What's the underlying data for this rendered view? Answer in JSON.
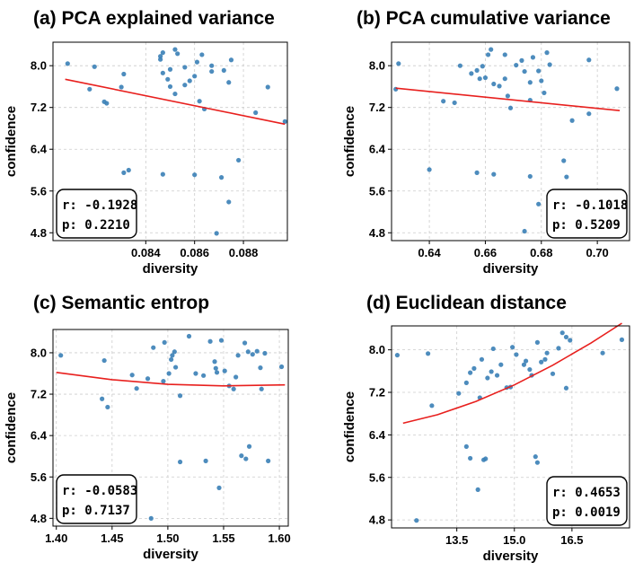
{
  "chart_data": [
    {
      "type": "scatter",
      "title": "(a) PCA explained variance",
      "xlabel": "diversity",
      "ylabel": "confidence",
      "xlim": [
        0.0802,
        0.0898
      ],
      "ylim": [
        4.65,
        8.45
      ],
      "xticks": [
        0.084,
        0.086,
        0.088
      ],
      "xtick_labels": [
        "0.084",
        "0.086",
        "0.088"
      ],
      "yticks": [
        4.8,
        5.6,
        6.4,
        7.2,
        8.0
      ],
      "ytick_labels": [
        "4.8",
        "5.6",
        "6.4",
        "7.2",
        "8.0"
      ],
      "stats": {
        "r": "r: -0.1928",
        "p": "p: 0.2210"
      },
      "stats_box": "bottom-left",
      "trend": {
        "kind": "linear",
        "points": [
          [
            0.0807,
            7.74
          ],
          [
            0.0897,
            6.88
          ]
        ]
      },
      "points": [
        [
          0.0808,
          8.04
        ],
        [
          0.0817,
          7.55
        ],
        [
          0.0819,
          7.98
        ],
        [
          0.0824,
          7.28
        ],
        [
          0.0823,
          7.31
        ],
        [
          0.0831,
          7.84
        ],
        [
          0.083,
          7.59
        ],
        [
          0.0831,
          5.95
        ],
        [
          0.0833,
          6.0
        ],
        [
          0.0846,
          8.12
        ],
        [
          0.0846,
          8.18
        ],
        [
          0.0847,
          8.25
        ],
        [
          0.0852,
          8.31
        ],
        [
          0.085,
          7.93
        ],
        [
          0.0847,
          7.86
        ],
        [
          0.0849,
          7.74
        ],
        [
          0.085,
          7.6
        ],
        [
          0.0852,
          7.46
        ],
        [
          0.0856,
          7.63
        ],
        [
          0.0856,
          7.97
        ],
        [
          0.0853,
          8.23
        ],
        [
          0.086,
          7.8
        ],
        [
          0.0858,
          7.71
        ],
        [
          0.0861,
          8.07
        ],
        [
          0.0863,
          8.21
        ],
        [
          0.0864,
          7.17
        ],
        [
          0.0862,
          7.32
        ],
        [
          0.0867,
          7.89
        ],
        [
          0.0867,
          8.0
        ],
        [
          0.0872,
          7.91
        ],
        [
          0.0874,
          7.68
        ],
        [
          0.0875,
          8.11
        ],
        [
          0.0847,
          5.92
        ],
        [
          0.086,
          5.91
        ],
        [
          0.0871,
          5.86
        ],
        [
          0.0874,
          5.39
        ],
        [
          0.0869,
          4.79
        ],
        [
          0.0878,
          6.19
        ],
        [
          0.0885,
          7.1
        ],
        [
          0.089,
          7.59
        ],
        [
          0.0897,
          6.93
        ]
      ]
    },
    {
      "type": "scatter",
      "title": "(b) PCA cumulative variance",
      "xlabel": "diversity",
      "ylabel": "confidence",
      "xlim": [
        0.6265,
        0.7115
      ],
      "ylim": [
        4.65,
        8.45
      ],
      "xticks": [
        0.64,
        0.66,
        0.68,
        0.7
      ],
      "xtick_labels": [
        "0.64",
        "0.66",
        "0.68",
        "0.70"
      ],
      "yticks": [
        4.8,
        5.6,
        6.4,
        7.2,
        8.0
      ],
      "ytick_labels": [
        "4.8",
        "5.6",
        "6.4",
        "7.2",
        "8.0"
      ],
      "stats": {
        "r": "r: -0.1018",
        "p": "p: 0.5209"
      },
      "stats_box": "bottom-right",
      "trend": {
        "kind": "linear",
        "points": [
          [
            0.628,
            7.57
          ],
          [
            0.708,
            7.14
          ]
        ]
      },
      "points": [
        [
          0.628,
          7.55
        ],
        [
          0.629,
          8.04
        ],
        [
          0.645,
          7.32
        ],
        [
          0.651,
          8.0
        ],
        [
          0.649,
          7.29
        ],
        [
          0.655,
          7.85
        ],
        [
          0.658,
          7.75
        ],
        [
          0.657,
          7.91
        ],
        [
          0.659,
          7.99
        ],
        [
          0.66,
          7.77
        ],
        [
          0.661,
          8.21
        ],
        [
          0.662,
          8.31
        ],
        [
          0.663,
          7.65
        ],
        [
          0.665,
          7.61
        ],
        [
          0.667,
          8.21
        ],
        [
          0.667,
          7.75
        ],
        [
          0.668,
          7.42
        ],
        [
          0.669,
          7.19
        ],
        [
          0.671,
          8.01
        ],
        [
          0.673,
          8.1
        ],
        [
          0.674,
          7.89
        ],
        [
          0.676,
          7.34
        ],
        [
          0.676,
          7.68
        ],
        [
          0.677,
          8.16
        ],
        [
          0.679,
          7.9
        ],
        [
          0.68,
          7.71
        ],
        [
          0.681,
          7.48
        ],
        [
          0.682,
          8.25
        ],
        [
          0.683,
          8.02
        ],
        [
          0.691,
          6.95
        ],
        [
          0.697,
          8.11
        ],
        [
          0.697,
          7.08
        ],
        [
          0.707,
          7.56
        ],
        [
          0.64,
          6.01
        ],
        [
          0.657,
          5.95
        ],
        [
          0.663,
          5.92
        ],
        [
          0.676,
          5.88
        ],
        [
          0.688,
          6.18
        ],
        [
          0.689,
          5.87
        ],
        [
          0.674,
          4.83
        ],
        [
          0.679,
          5.35
        ]
      ]
    },
    {
      "type": "scatter",
      "title": "(c) Semantic entrop",
      "xlabel": "diversity",
      "ylabel": "confidence",
      "xlim": [
        1.397,
        1.608
      ],
      "ylim": [
        4.65,
        8.45
      ],
      "xticks": [
        1.4,
        1.45,
        1.5,
        1.55,
        1.6
      ],
      "xtick_labels": [
        "1.40",
        "1.45",
        "1.50",
        "1.55",
        "1.60"
      ],
      "yticks": [
        4.8,
        5.6,
        6.4,
        7.2,
        8.0
      ],
      "ytick_labels": [
        "4.8",
        "5.6",
        "6.4",
        "7.2",
        "8.0"
      ],
      "stats": {
        "r": "r: -0.0583",
        "p": "p: 0.7137"
      },
      "stats_box": "bottom-left",
      "trend": {
        "kind": "quadratic",
        "points": [
          [
            1.4,
            7.62
          ],
          [
            1.45,
            7.48
          ],
          [
            1.5,
            7.39
          ],
          [
            1.55,
            7.36
          ],
          [
            1.605,
            7.38
          ]
        ]
      },
      "points": [
        [
          1.404,
          7.95
        ],
        [
          1.441,
          7.11
        ],
        [
          1.443,
          7.85
        ],
        [
          1.446,
          6.95
        ],
        [
          1.468,
          7.57
        ],
        [
          1.472,
          7.31
        ],
        [
          1.482,
          7.5
        ],
        [
          1.487,
          8.1
        ],
        [
          1.496,
          7.45
        ],
        [
          1.497,
          8.2
        ],
        [
          1.501,
          7.6
        ],
        [
          1.503,
          7.87
        ],
        [
          1.504,
          7.95
        ],
        [
          1.506,
          8.02
        ],
        [
          1.507,
          7.72
        ],
        [
          1.511,
          7.17
        ],
        [
          1.519,
          8.32
        ],
        [
          1.525,
          7.6
        ],
        [
          1.532,
          7.56
        ],
        [
          1.538,
          8.22
        ],
        [
          1.542,
          7.83
        ],
        [
          1.543,
          7.7
        ],
        [
          1.544,
          7.62
        ],
        [
          1.548,
          8.24
        ],
        [
          1.551,
          7.65
        ],
        [
          1.555,
          7.36
        ],
        [
          1.559,
          7.3
        ],
        [
          1.561,
          7.53
        ],
        [
          1.563,
          7.95
        ],
        [
          1.569,
          8.19
        ],
        [
          1.572,
          8.02
        ],
        [
          1.576,
          7.97
        ],
        [
          1.58,
          8.03
        ],
        [
          1.583,
          7.71
        ],
        [
          1.587,
          7.99
        ],
        [
          1.602,
          7.73
        ],
        [
          1.59,
          5.91
        ],
        [
          1.566,
          6.01
        ],
        [
          1.57,
          5.95
        ],
        [
          1.573,
          6.19
        ],
        [
          1.511,
          5.89
        ],
        [
          1.534,
          5.91
        ],
        [
          1.546,
          5.39
        ],
        [
          1.485,
          4.8
        ],
        [
          1.584,
          7.3
        ]
      ]
    },
    {
      "type": "scatter",
      "title": "(d) Euclidean distance",
      "xlabel": "diversity",
      "ylabel": "confidence",
      "xlim": [
        11.8,
        18.0
      ],
      "ylim": [
        4.65,
        8.45
      ],
      "xticks": [
        13.5,
        15.0,
        16.5
      ],
      "xtick_labels": [
        "13.5",
        "15.0",
        "16.5"
      ],
      "yticks": [
        4.8,
        5.6,
        6.4,
        7.2,
        8.0
      ],
      "ytick_labels": [
        "4.8",
        "5.6",
        "6.4",
        "7.2",
        "8.0"
      ],
      "stats": {
        "r": "r:  0.4653",
        "p": "p: 0.0019"
      },
      "stats_box": "bottom-right",
      "trend": {
        "kind": "exponential",
        "points": [
          [
            12.1,
            6.62
          ],
          [
            13.0,
            6.78
          ],
          [
            14.0,
            7.03
          ],
          [
            15.0,
            7.34
          ],
          [
            16.0,
            7.71
          ],
          [
            17.0,
            8.13
          ],
          [
            17.8,
            8.5
          ]
        ]
      },
      "points": [
        [
          11.95,
          7.9
        ],
        [
          12.75,
          7.93
        ],
        [
          12.85,
          6.95
        ],
        [
          13.55,
          7.18
        ],
        [
          13.75,
          7.38
        ],
        [
          13.95,
          7.65
        ],
        [
          13.85,
          7.57
        ],
        [
          14.1,
          7.1
        ],
        [
          14.15,
          7.82
        ],
        [
          14.3,
          7.47
        ],
        [
          14.4,
          7.59
        ],
        [
          14.45,
          8.02
        ],
        [
          14.55,
          7.52
        ],
        [
          14.65,
          7.72
        ],
        [
          14.8,
          7.29
        ],
        [
          14.9,
          7.3
        ],
        [
          14.95,
          8.05
        ],
        [
          15.05,
          7.91
        ],
        [
          15.25,
          7.72
        ],
        [
          15.3,
          7.79
        ],
        [
          15.4,
          7.63
        ],
        [
          15.45,
          7.52
        ],
        [
          15.6,
          8.14
        ],
        [
          15.7,
          7.77
        ],
        [
          15.8,
          7.82
        ],
        [
          15.85,
          7.94
        ],
        [
          16.0,
          7.55
        ],
        [
          16.15,
          8.03
        ],
        [
          16.25,
          8.32
        ],
        [
          16.35,
          7.28
        ],
        [
          16.45,
          8.18
        ],
        [
          16.35,
          8.24
        ],
        [
          17.3,
          7.94
        ],
        [
          17.8,
          8.19
        ],
        [
          13.85,
          5.96
        ],
        [
          13.75,
          6.18
        ],
        [
          14.2,
          5.93
        ],
        [
          14.25,
          5.95
        ],
        [
          15.55,
          5.99
        ],
        [
          15.6,
          5.88
        ],
        [
          14.05,
          5.37
        ],
        [
          12.45,
          4.79
        ]
      ]
    }
  ]
}
